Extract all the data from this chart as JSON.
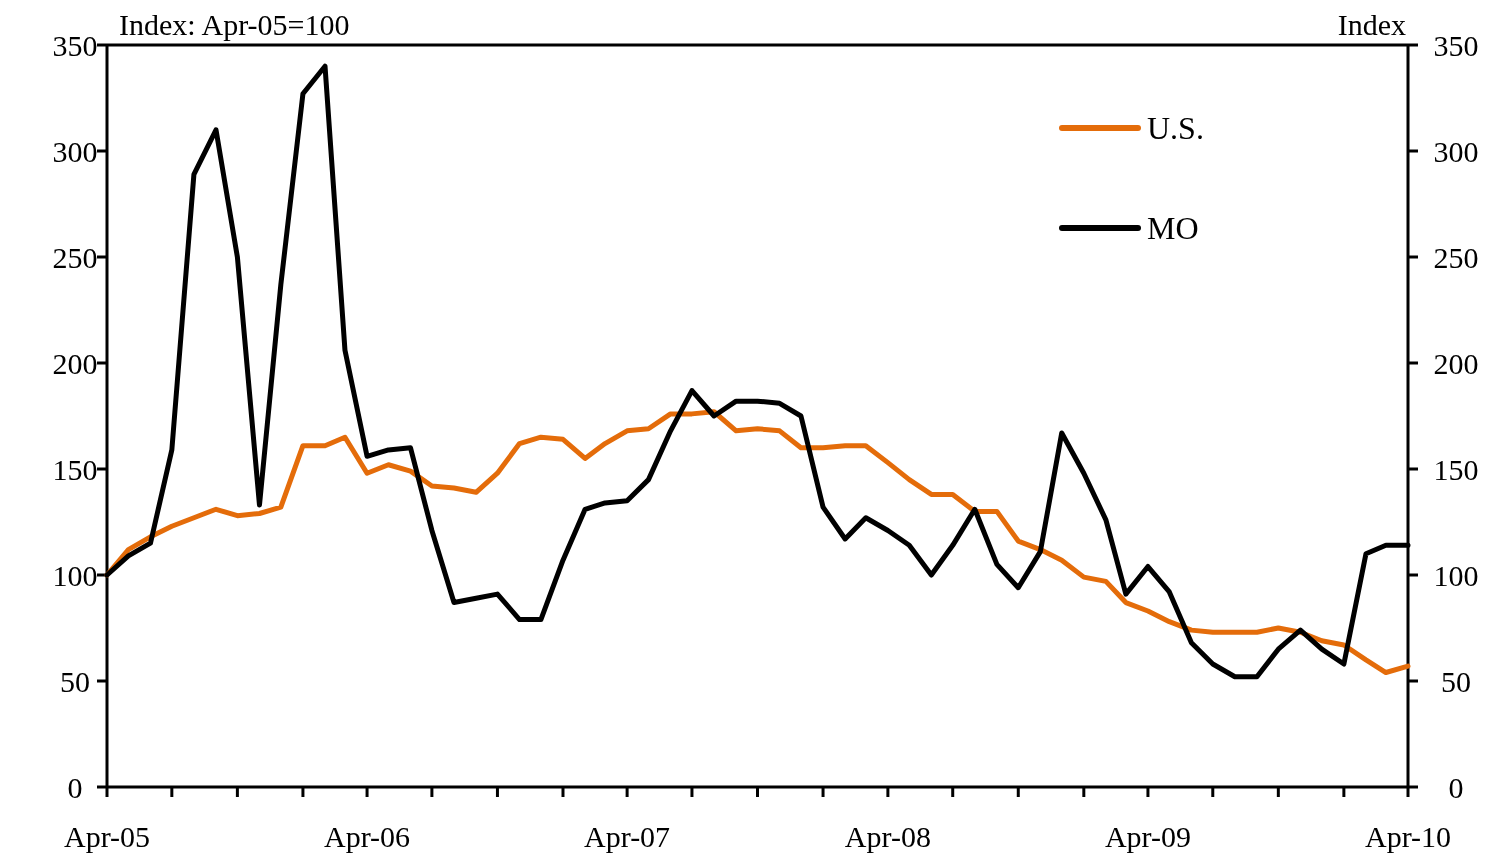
{
  "chart_data": {
    "type": "line",
    "ylabel": "Index: Apr-05=100",
    "y2label": "Index",
    "x": [
      "2005-04",
      "2005-05",
      "2005-06",
      "2005-07",
      "2005-08",
      "2005-09",
      "2005-10",
      "2005-11",
      "2005-12",
      "2006-01",
      "2006-02",
      "2006-03",
      "2006-04",
      "2006-05",
      "2006-06",
      "2006-07",
      "2006-08",
      "2006-09",
      "2006-10",
      "2006-11",
      "2006-12",
      "2007-01",
      "2007-02",
      "2007-03",
      "2007-04",
      "2007-05",
      "2007-06",
      "2007-07",
      "2007-08",
      "2007-09",
      "2007-10",
      "2007-11",
      "2007-12",
      "2008-01",
      "2008-02",
      "2008-03",
      "2008-04",
      "2008-05",
      "2008-06",
      "2008-07",
      "2008-08",
      "2008-09",
      "2008-10",
      "2008-11",
      "2008-12",
      "2009-01",
      "2009-02",
      "2009-03",
      "2009-04",
      "2009-05",
      "2009-06",
      "2009-07",
      "2009-08",
      "2009-09",
      "2009-10",
      "2009-11",
      "2009-12",
      "2010-01",
      "2010-02",
      "2010-03",
      "2010-04"
    ],
    "series": [
      {
        "name": "U.S.",
        "color": "#e46c0a",
        "values": [
          100,
          112,
          118,
          123,
          127,
          131,
          128,
          129,
          132,
          161,
          161,
          165,
          148,
          152,
          149,
          142,
          141,
          139,
          148,
          162,
          165,
          164,
          155,
          162,
          168,
          169,
          176,
          176,
          177,
          168,
          169,
          168,
          160,
          160,
          161,
          161,
          153,
          145,
          138,
          138,
          130,
          130,
          116,
          112,
          107,
          99,
          97,
          87,
          83,
          78,
          74,
          73,
          73,
          73,
          75,
          73,
          69,
          67,
          60,
          54,
          57
        ]
      },
      {
        "name": "MO",
        "color": "#000000",
        "values": [
          100,
          109,
          115,
          159,
          289,
          310,
          250,
          133,
          237,
          327,
          340,
          206,
          156,
          159,
          160,
          121,
          87,
          89,
          91,
          79,
          79,
          107,
          131,
          134,
          135,
          145,
          168,
          187,
          175,
          182,
          182,
          181,
          175,
          132,
          117,
          127,
          121,
          114,
          100,
          114,
          131,
          105,
          94,
          111,
          167,
          148,
          126,
          91,
          104,
          92,
          68,
          58,
          52,
          52,
          65,
          74,
          65,
          58,
          110,
          114,
          114
        ]
      }
    ],
    "xlim": [
      "2005-04",
      "2010-04"
    ],
    "xticks": [
      {
        "value": "2005-04",
        "label": "Apr-05"
      },
      {
        "value": "2005-07",
        "label": null
      },
      {
        "value": "2005-10",
        "label": null
      },
      {
        "value": "2006-01",
        "label": null
      },
      {
        "value": "2006-04",
        "label": "Apr-06"
      },
      {
        "value": "2006-07",
        "label": null
      },
      {
        "value": "2006-10",
        "label": null
      },
      {
        "value": "2007-01",
        "label": null
      },
      {
        "value": "2007-04",
        "label": "Apr-07"
      },
      {
        "value": "2007-07",
        "label": null
      },
      {
        "value": "2007-10",
        "label": null
      },
      {
        "value": "2008-01",
        "label": null
      },
      {
        "value": "2008-04",
        "label": "Apr-08"
      },
      {
        "value": "2008-07",
        "label": null
      },
      {
        "value": "2008-10",
        "label": null
      },
      {
        "value": "2009-01",
        "label": null
      },
      {
        "value": "2009-04",
        "label": "Apr-09"
      },
      {
        "value": "2009-07",
        "label": null
      },
      {
        "value": "2009-10",
        "label": null
      },
      {
        "value": "2010-01",
        "label": null
      },
      {
        "value": "2010-04",
        "label": "Apr-10"
      }
    ],
    "ylim": [
      0,
      350
    ],
    "yticks": [
      0,
      50,
      100,
      150,
      200,
      250,
      300,
      350
    ],
    "y2lim": [
      0,
      350
    ],
    "y2ticks": [
      0,
      50,
      100,
      150,
      200,
      250,
      300,
      350
    ],
    "legend": "top right",
    "grid": false,
    "line_style": "solid",
    "marker": "none"
  }
}
